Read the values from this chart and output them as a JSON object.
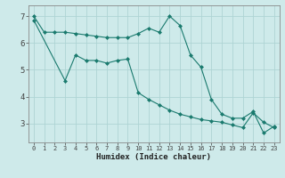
{
  "xlabel": "Humidex (Indice chaleur)",
  "background_color": "#ceeaea",
  "line_color": "#1a7a6e",
  "grid_color": "#aed4d4",
  "line1_x": [
    0,
    1,
    2,
    3,
    4,
    5,
    6,
    7,
    8,
    9,
    10,
    11,
    12,
    13,
    14,
    15,
    16,
    17,
    18,
    19,
    20,
    21,
    22,
    23
  ],
  "line1_y": [
    7.0,
    6.4,
    6.4,
    6.4,
    6.35,
    6.3,
    6.25,
    6.2,
    6.2,
    6.2,
    6.35,
    6.55,
    6.4,
    7.0,
    6.65,
    5.55,
    5.1,
    3.9,
    3.35,
    3.2,
    3.2,
    3.45,
    2.65,
    2.9
  ],
  "line2_x": [
    0,
    3,
    4,
    5,
    6,
    7,
    8,
    9,
    10,
    11,
    12,
    13,
    14,
    15,
    16,
    17,
    18,
    19,
    20,
    21,
    22,
    23
  ],
  "line2_y": [
    6.85,
    4.6,
    5.55,
    5.35,
    5.35,
    5.25,
    5.35,
    5.4,
    4.15,
    3.9,
    3.7,
    3.5,
    3.35,
    3.25,
    3.15,
    3.1,
    3.05,
    2.95,
    2.85,
    3.4,
    3.05,
    2.85
  ],
  "ylim": [
    2.3,
    7.4
  ],
  "xlim": [
    -0.5,
    23.5
  ],
  "yticks": [
    3,
    4,
    5,
    6,
    7
  ],
  "xticks": [
    0,
    1,
    2,
    3,
    4,
    5,
    6,
    7,
    8,
    9,
    10,
    11,
    12,
    13,
    14,
    15,
    16,
    17,
    18,
    19,
    20,
    21,
    22,
    23
  ]
}
